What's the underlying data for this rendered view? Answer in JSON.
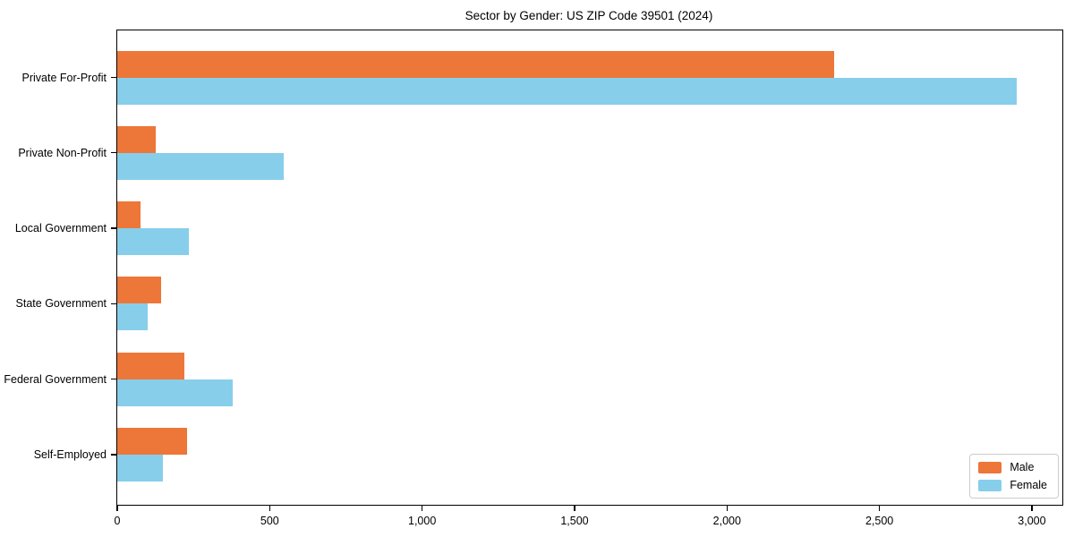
{
  "title": "Sector by Gender: US ZIP Code 39501 (2024)",
  "chart_data": {
    "type": "bar",
    "orientation": "horizontal",
    "title": "Sector by Gender: US ZIP Code 39501 (2024)",
    "categories": [
      "Private For-Profit",
      "Private Non-Profit",
      "Local Government",
      "State Government",
      "Federal Government",
      "Self-Employed"
    ],
    "series": [
      {
        "name": "Male",
        "color": "#ed7639",
        "values": [
          2350,
          125,
          75,
          145,
          220,
          230
        ]
      },
      {
        "name": "Female",
        "color": "#87ceeb",
        "values": [
          2950,
          545,
          235,
          100,
          380,
          150
        ]
      }
    ],
    "xlabel": "",
    "ylabel": "",
    "xlim": [
      0,
      3100
    ],
    "xticks": [
      0,
      500,
      1000,
      1500,
      2000,
      2500,
      3000
    ],
    "xtick_labels": [
      "0",
      "500",
      "1,000",
      "1,500",
      "2,000",
      "2,500",
      "3,000"
    ],
    "grid": false,
    "legend": {
      "position": "lower right",
      "entries": [
        "Male",
        "Female"
      ]
    },
    "colors": {
      "male": "#ed7639",
      "female": "#87ceeb",
      "frame": "#000000",
      "legend_border": "#cccccc",
      "background": "#ffffff"
    }
  }
}
